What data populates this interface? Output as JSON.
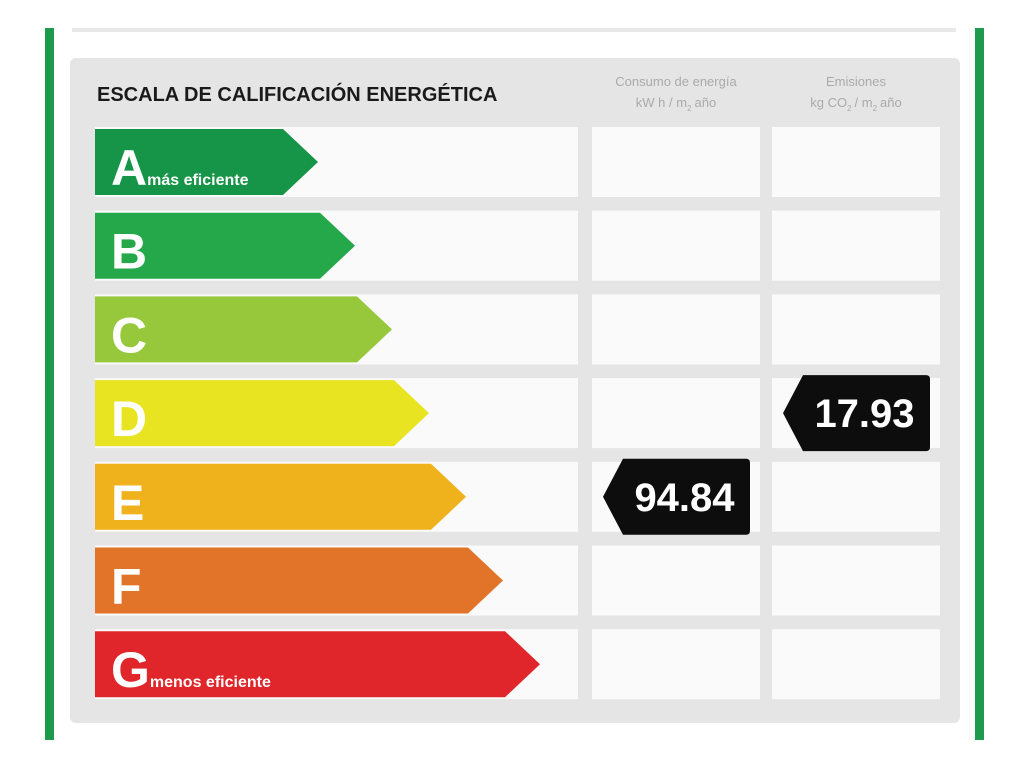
{
  "header": {
    "title": "ESCALA DE CALIFICACIÓN ENERGÉTICA",
    "columns": [
      {
        "name": "Consumo de energía",
        "unit": [
          "kW h / m",
          "2",
          "año"
        ]
      },
      {
        "name": "Emisiones",
        "unit": [
          "kg CO",
          "2",
          "/ m",
          "2",
          "año"
        ]
      }
    ]
  },
  "grades": [
    {
      "letter": "A",
      "note": "más eficiente",
      "color": "#169447"
    },
    {
      "letter": "B",
      "color": "#25a84a"
    },
    {
      "letter": "C",
      "color": "#97c83c"
    },
    {
      "letter": "D",
      "color": "#e8e421"
    },
    {
      "letter": "E",
      "color": "#efb21d"
    },
    {
      "letter": "F",
      "color": "#e27429"
    },
    {
      "letter": "G",
      "note": "menos eficiente",
      "color": "#e0262a"
    }
  ],
  "ratings": [
    {
      "column": 0,
      "grade": "E",
      "value": 94.84
    },
    {
      "column": 1,
      "grade": "D",
      "value": 17.93
    }
  ]
}
